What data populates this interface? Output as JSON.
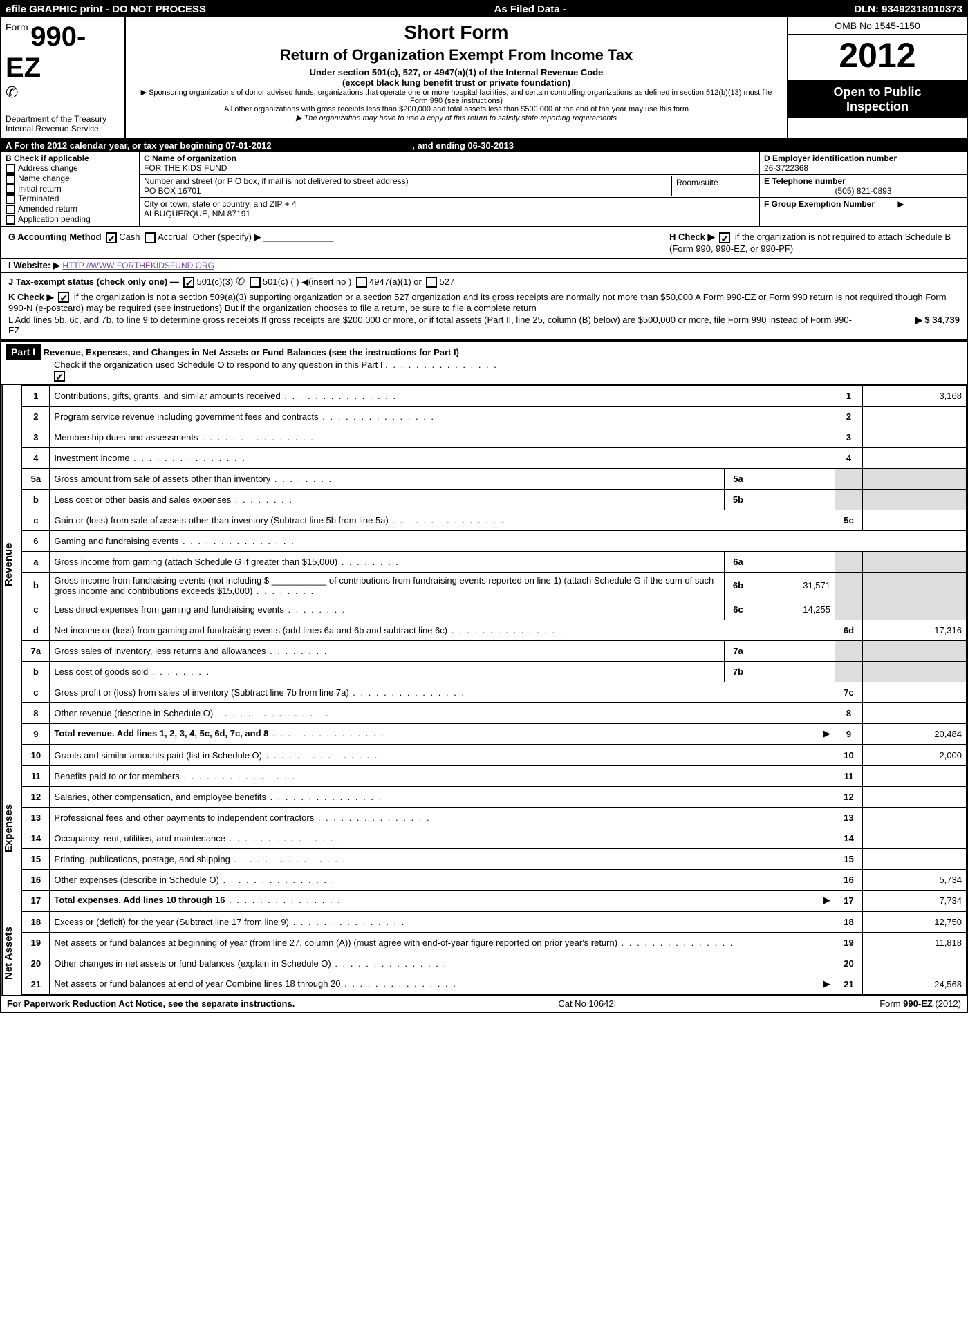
{
  "topbar": {
    "left": "efile GRAPHIC print - DO NOT PROCESS",
    "center": "As Filed Data -",
    "right": "DLN: 93492318010373"
  },
  "header": {
    "formPrefix": "Form",
    "formNum": "990-EZ",
    "dept": "Department of the Treasury",
    "irs": "Internal Revenue Service",
    "shortForm": "Short Form",
    "title": "Return of Organization Exempt From Income Tax",
    "subtitle": "Under section 501(c), 527, or 4947(a)(1) of the Internal Revenue Code",
    "subtitle2": "(except black lung benefit trust or private foundation)",
    "sponsor": "▶ Sponsoring organizations of donor advised funds, organizations that operate one or more hospital facilities, and certain controlling organizations as defined in section 512(b)(13) must file Form 990 (see instructions)",
    "allOther": "All other organizations with gross receipts less than $200,000 and total assets less than $500,000 at the end of the year may use this form",
    "stateReq": "▶ The organization may have to use a copy of this return to satisfy state reporting requirements",
    "omb": "OMB No  1545-1150",
    "year": "2012",
    "open": "Open to Public",
    "inspect": "Inspection"
  },
  "rowA": {
    "text": "A  For the 2012 calendar year, or tax year beginning 07-01-2012",
    "ending": ", and ending 06-30-2013"
  },
  "B": {
    "hdr": "B  Check if applicable",
    "opts": [
      "Address change",
      "Name change",
      "Initial return",
      "Terminated",
      "Amended return",
      "Application pending"
    ]
  },
  "C": {
    "nameLbl": "C Name of organization",
    "name": "FOR THE KIDS FUND",
    "streetLbl": "Number and street (or P  O  box, if mail is not delivered to street address)",
    "roomLbl": "Room/suite",
    "street": "PO BOX 16701",
    "cityLbl": "City or town, state or country, and ZIP + 4",
    "city": "ALBUQUERQUE, NM  87191"
  },
  "D": {
    "einLbl": "D Employer identification number",
    "ein": "26-3722368",
    "telLbl": "E Telephone number",
    "tel": "(505) 821-0893",
    "grpLbl": "F Group Exemption Number",
    "grpArrow": "▶"
  },
  "G": {
    "label": "G Accounting Method",
    "opts": [
      "Cash",
      "Accrual",
      "Other (specify) ▶"
    ],
    "checked": 0
  },
  "H": {
    "text1": "H  Check ▶",
    "text2": "if the organization is not required to attach Schedule B (Form 990, 990-EZ, or 990-PF)",
    "checked": true
  },
  "I": {
    "label": "I Website: ▶",
    "url": "HTTP //WWW FORTHEKIDSFUND ORG"
  },
  "J": {
    "label": "J Tax-exempt status (check only one) —",
    "opts": [
      "501(c)(3)",
      "501(c) (   ) ◀(insert no )",
      "4947(a)(1) or",
      "527"
    ],
    "checked": 0
  },
  "K": {
    "text": "K Check ▶",
    "rest": "if the organization is not a section 509(a)(3) supporting organization or a section 527 organization and its gross receipts are normally not more than $50,000  A Form 990-EZ or Form 990 return is not required though Form 990-N (e-postcard) may be required (see instructions)  But if the organization chooses to file a return, be sure to file a complete return",
    "checked": true
  },
  "L": {
    "text": "L Add lines 5b, 6c, and 7b, to line 9 to determine gross receipts  If gross receipts are $200,000 or more, or if total assets (Part II, line 25, column (B) below) are $500,000 or more, file Form 990 instead of Form 990-EZ",
    "amount": "▶ $ 34,739"
  },
  "part1": {
    "hdr": "Part I",
    "title": "Revenue, Expenses, and Changes in Net Assets or Fund Balances (see the instructions for Part I)",
    "check": "Check if the organization used Schedule O to respond to any question in this Part I",
    "checked": true
  },
  "sections": [
    {
      "label": "Revenue",
      "rows": [
        {
          "n": "1",
          "d": "Contributions, gifts, grants, and similar amounts received",
          "rbox": "1",
          "rval": "3,168"
        },
        {
          "n": "2",
          "d": "Program service revenue including government fees and contracts",
          "rbox": "2",
          "rval": ""
        },
        {
          "n": "3",
          "d": "Membership dues and assessments",
          "rbox": "3",
          "rval": ""
        },
        {
          "n": "4",
          "d": "Investment income",
          "rbox": "4",
          "rval": ""
        },
        {
          "n": "5a",
          "d": "Gross amount from sale of assets other than inventory",
          "lbox": "5a",
          "lval": "",
          "rgrey": true
        },
        {
          "n": "b",
          "d": "Less  cost or other basis and sales expenses",
          "lbox": "5b",
          "lval": "",
          "rgrey": true
        },
        {
          "n": "c",
          "d": "Gain or (loss) from sale of assets other than inventory (Subtract line 5b from line 5a)",
          "rbox": "5c",
          "rval": ""
        },
        {
          "n": "6",
          "d": "Gaming and fundraising events",
          "nobox": true
        },
        {
          "n": "a",
          "d": "Gross income from gaming (attach Schedule G if greater than $15,000)",
          "lbox": "6a",
          "lval": "",
          "rgrey": true
        },
        {
          "n": "b",
          "d": "Gross income from fundraising events (not including $ ___________ of contributions from fundraising events reported on line 1) (attach Schedule G if the sum of such gross income and contributions exceeds $15,000)",
          "lbox": "6b",
          "lval": "31,571",
          "rgrey": true
        },
        {
          "n": "c",
          "d": "Less  direct expenses from gaming and fundraising events",
          "lbox": "6c",
          "lval": "14,255",
          "rgrey": true
        },
        {
          "n": "d",
          "d": "Net income or (loss) from gaming and fundraising events (add lines 6a and 6b and subtract line 6c)",
          "rbox": "6d",
          "rval": "17,316"
        },
        {
          "n": "7a",
          "d": "Gross sales of inventory, less returns and allowances",
          "lbox": "7a",
          "lval": "",
          "rgrey": true
        },
        {
          "n": "b",
          "d": "Less  cost of goods sold",
          "lbox": "7b",
          "lval": "",
          "rgrey": true
        },
        {
          "n": "c",
          "d": "Gross profit or (loss) from sales of inventory (Subtract line 7b from line 7a)",
          "rbox": "7c",
          "rval": ""
        },
        {
          "n": "8",
          "d": "Other revenue (describe in Schedule O)",
          "rbox": "8",
          "rval": ""
        },
        {
          "n": "9",
          "d": "Total revenue. Add lines 1, 2, 3, 4, 5c, 6d, 7c, and 8",
          "rbox": "9",
          "rval": "20,484",
          "bold": true,
          "arrow": true
        }
      ]
    },
    {
      "label": "Expenses",
      "rows": [
        {
          "n": "10",
          "d": "Grants and similar amounts paid (list in Schedule O)",
          "rbox": "10",
          "rval": "2,000"
        },
        {
          "n": "11",
          "d": "Benefits paid to or for members",
          "rbox": "11",
          "rval": ""
        },
        {
          "n": "12",
          "d": "Salaries, other compensation, and employee benefits",
          "rbox": "12",
          "rval": ""
        },
        {
          "n": "13",
          "d": "Professional fees and other payments to independent contractors",
          "rbox": "13",
          "rval": ""
        },
        {
          "n": "14",
          "d": "Occupancy, rent, utilities, and maintenance",
          "rbox": "14",
          "rval": ""
        },
        {
          "n": "15",
          "d": "Printing, publications, postage, and shipping",
          "rbox": "15",
          "rval": ""
        },
        {
          "n": "16",
          "d": "Other expenses (describe in Schedule O)",
          "rbox": "16",
          "rval": "5,734"
        },
        {
          "n": "17",
          "d": "Total expenses. Add lines 10 through 16",
          "rbox": "17",
          "rval": "7,734",
          "bold": true,
          "arrow": true
        }
      ]
    },
    {
      "label": "Net Assets",
      "rows": [
        {
          "n": "18",
          "d": "Excess or (deficit) for the year (Subtract line 17 from line 9)",
          "rbox": "18",
          "rval": "12,750"
        },
        {
          "n": "19",
          "d": "Net assets or fund balances at beginning of year (from line 27, column (A)) (must agree with end-of-year figure reported on prior year's return)",
          "rbox": "19",
          "rval": "11,818"
        },
        {
          "n": "20",
          "d": "Other changes in net assets or fund balances (explain in Schedule O)",
          "rbox": "20",
          "rval": ""
        },
        {
          "n": "21",
          "d": "Net assets or fund balances at end of year  Combine lines 18 through 20",
          "rbox": "21",
          "rval": "24,568",
          "arrow": true
        }
      ]
    }
  ],
  "footer": {
    "left": "For Paperwork Reduction Act Notice, see the separate instructions.",
    "center": "Cat  No  10642I",
    "right": "Form 990-EZ (2012)"
  }
}
